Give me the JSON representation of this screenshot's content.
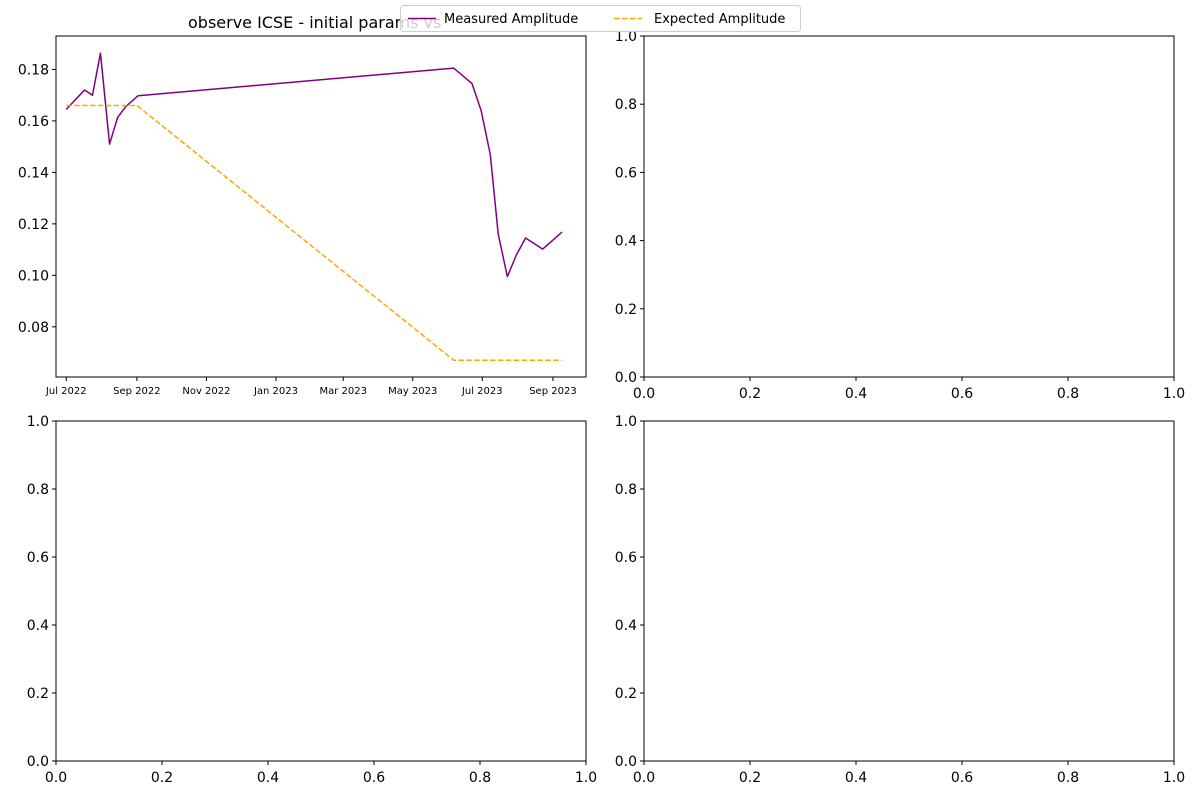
{
  "figure": {
    "legend": {
      "placement": "top-center",
      "items": [
        {
          "label": "Measured Amplitude",
          "color": "#800080",
          "style": "solid"
        },
        {
          "label": "Expected Amplitude",
          "color": "#ffa500",
          "style": "dashed"
        }
      ]
    }
  },
  "chart_data": [
    {
      "type": "line",
      "title": "observe ICSE - initial params vs",
      "xlabel": "",
      "ylabel": "",
      "x_type": "date",
      "xlim": [
        "2022-06-22",
        "2023-09-30"
      ],
      "ylim": [
        0.0605,
        0.193
      ],
      "xticks": [
        "2022-07-01",
        "2022-09-01",
        "2022-11-01",
        "2023-01-01",
        "2023-03-01",
        "2023-05-01",
        "2023-07-01",
        "2023-09-01"
      ],
      "xtick_labels": [
        "Jul 2022",
        "Sep 2022",
        "Nov 2022",
        "Jan 2023",
        "Mar 2023",
        "May 2023",
        "Jul 2023",
        "Sep 2023"
      ],
      "yticks": [
        0.08,
        0.1,
        0.12,
        0.14,
        0.16,
        0.18
      ],
      "ytick_labels": [
        "0.08",
        "0.10",
        "0.12",
        "0.14",
        "0.16",
        "0.18"
      ],
      "grid": false,
      "series": [
        {
          "name": "Measured Amplitude",
          "color": "#800080",
          "style": "solid",
          "points": [
            [
              "2022-07-01",
              0.1645
            ],
            [
              "2022-07-17",
              0.172
            ],
            [
              "2022-07-24",
              0.17
            ],
            [
              "2022-07-31",
              0.1863
            ],
            [
              "2022-08-08",
              0.151
            ],
            [
              "2022-08-15",
              0.1613
            ],
            [
              "2022-08-22",
              0.1655
            ],
            [
              "2022-09-02",
              0.1698
            ],
            [
              "2023-06-06",
              0.1805
            ],
            [
              "2023-06-22",
              0.1745
            ],
            [
              "2023-06-30",
              0.164
            ],
            [
              "2023-07-08",
              0.147
            ],
            [
              "2023-07-15",
              0.116
            ],
            [
              "2023-07-23",
              0.0995
            ],
            [
              "2023-07-31",
              0.108
            ],
            [
              "2023-08-08",
              0.1145
            ],
            [
              "2023-08-23",
              0.1102
            ],
            [
              "2023-09-09",
              0.1168
            ]
          ]
        },
        {
          "name": "Expected Amplitude",
          "color": "#ffa500",
          "style": "dashed",
          "points": [
            [
              "2022-07-01",
              0.166
            ],
            [
              "2022-09-01",
              0.166
            ],
            [
              "2023-06-06",
              0.067
            ],
            [
              "2023-09-09",
              0.067
            ]
          ]
        }
      ]
    },
    {
      "type": "line",
      "title": "",
      "xlim": [
        0,
        1
      ],
      "ylim": [
        0,
        1
      ],
      "xticks": [
        0.0,
        0.2,
        0.4,
        0.6,
        0.8,
        1.0
      ],
      "yticks": [
        0.0,
        0.2,
        0.4,
        0.6,
        0.8,
        1.0
      ],
      "xtick_labels": [
        "0.0",
        "0.2",
        "0.4",
        "0.6",
        "0.8",
        "1.0"
      ],
      "ytick_labels": [
        "0.0",
        "0.2",
        "0.4",
        "0.6",
        "0.8",
        "1.0"
      ],
      "series": []
    },
    {
      "type": "line",
      "title": "",
      "xlim": [
        0,
        1
      ],
      "ylim": [
        0,
        1
      ],
      "xticks": [
        0.0,
        0.2,
        0.4,
        0.6,
        0.8,
        1.0
      ],
      "yticks": [
        0.0,
        0.2,
        0.4,
        0.6,
        0.8,
        1.0
      ],
      "xtick_labels": [
        "0.0",
        "0.2",
        "0.4",
        "0.6",
        "0.8",
        "1.0"
      ],
      "ytick_labels": [
        "0.0",
        "0.2",
        "0.4",
        "0.6",
        "0.8",
        "1.0"
      ],
      "series": []
    },
    {
      "type": "line",
      "title": "",
      "xlim": [
        0,
        1
      ],
      "ylim": [
        0,
        1
      ],
      "xticks": [
        0.0,
        0.2,
        0.4,
        0.6,
        0.8,
        1.0
      ],
      "yticks": [
        0.0,
        0.2,
        0.4,
        0.6,
        0.8,
        1.0
      ],
      "xtick_labels": [
        "0.0",
        "0.2",
        "0.4",
        "0.6",
        "0.8",
        "1.0"
      ],
      "ytick_labels": [
        "0.0",
        "0.2",
        "0.4",
        "0.6",
        "0.8",
        "1.0"
      ],
      "series": []
    }
  ]
}
